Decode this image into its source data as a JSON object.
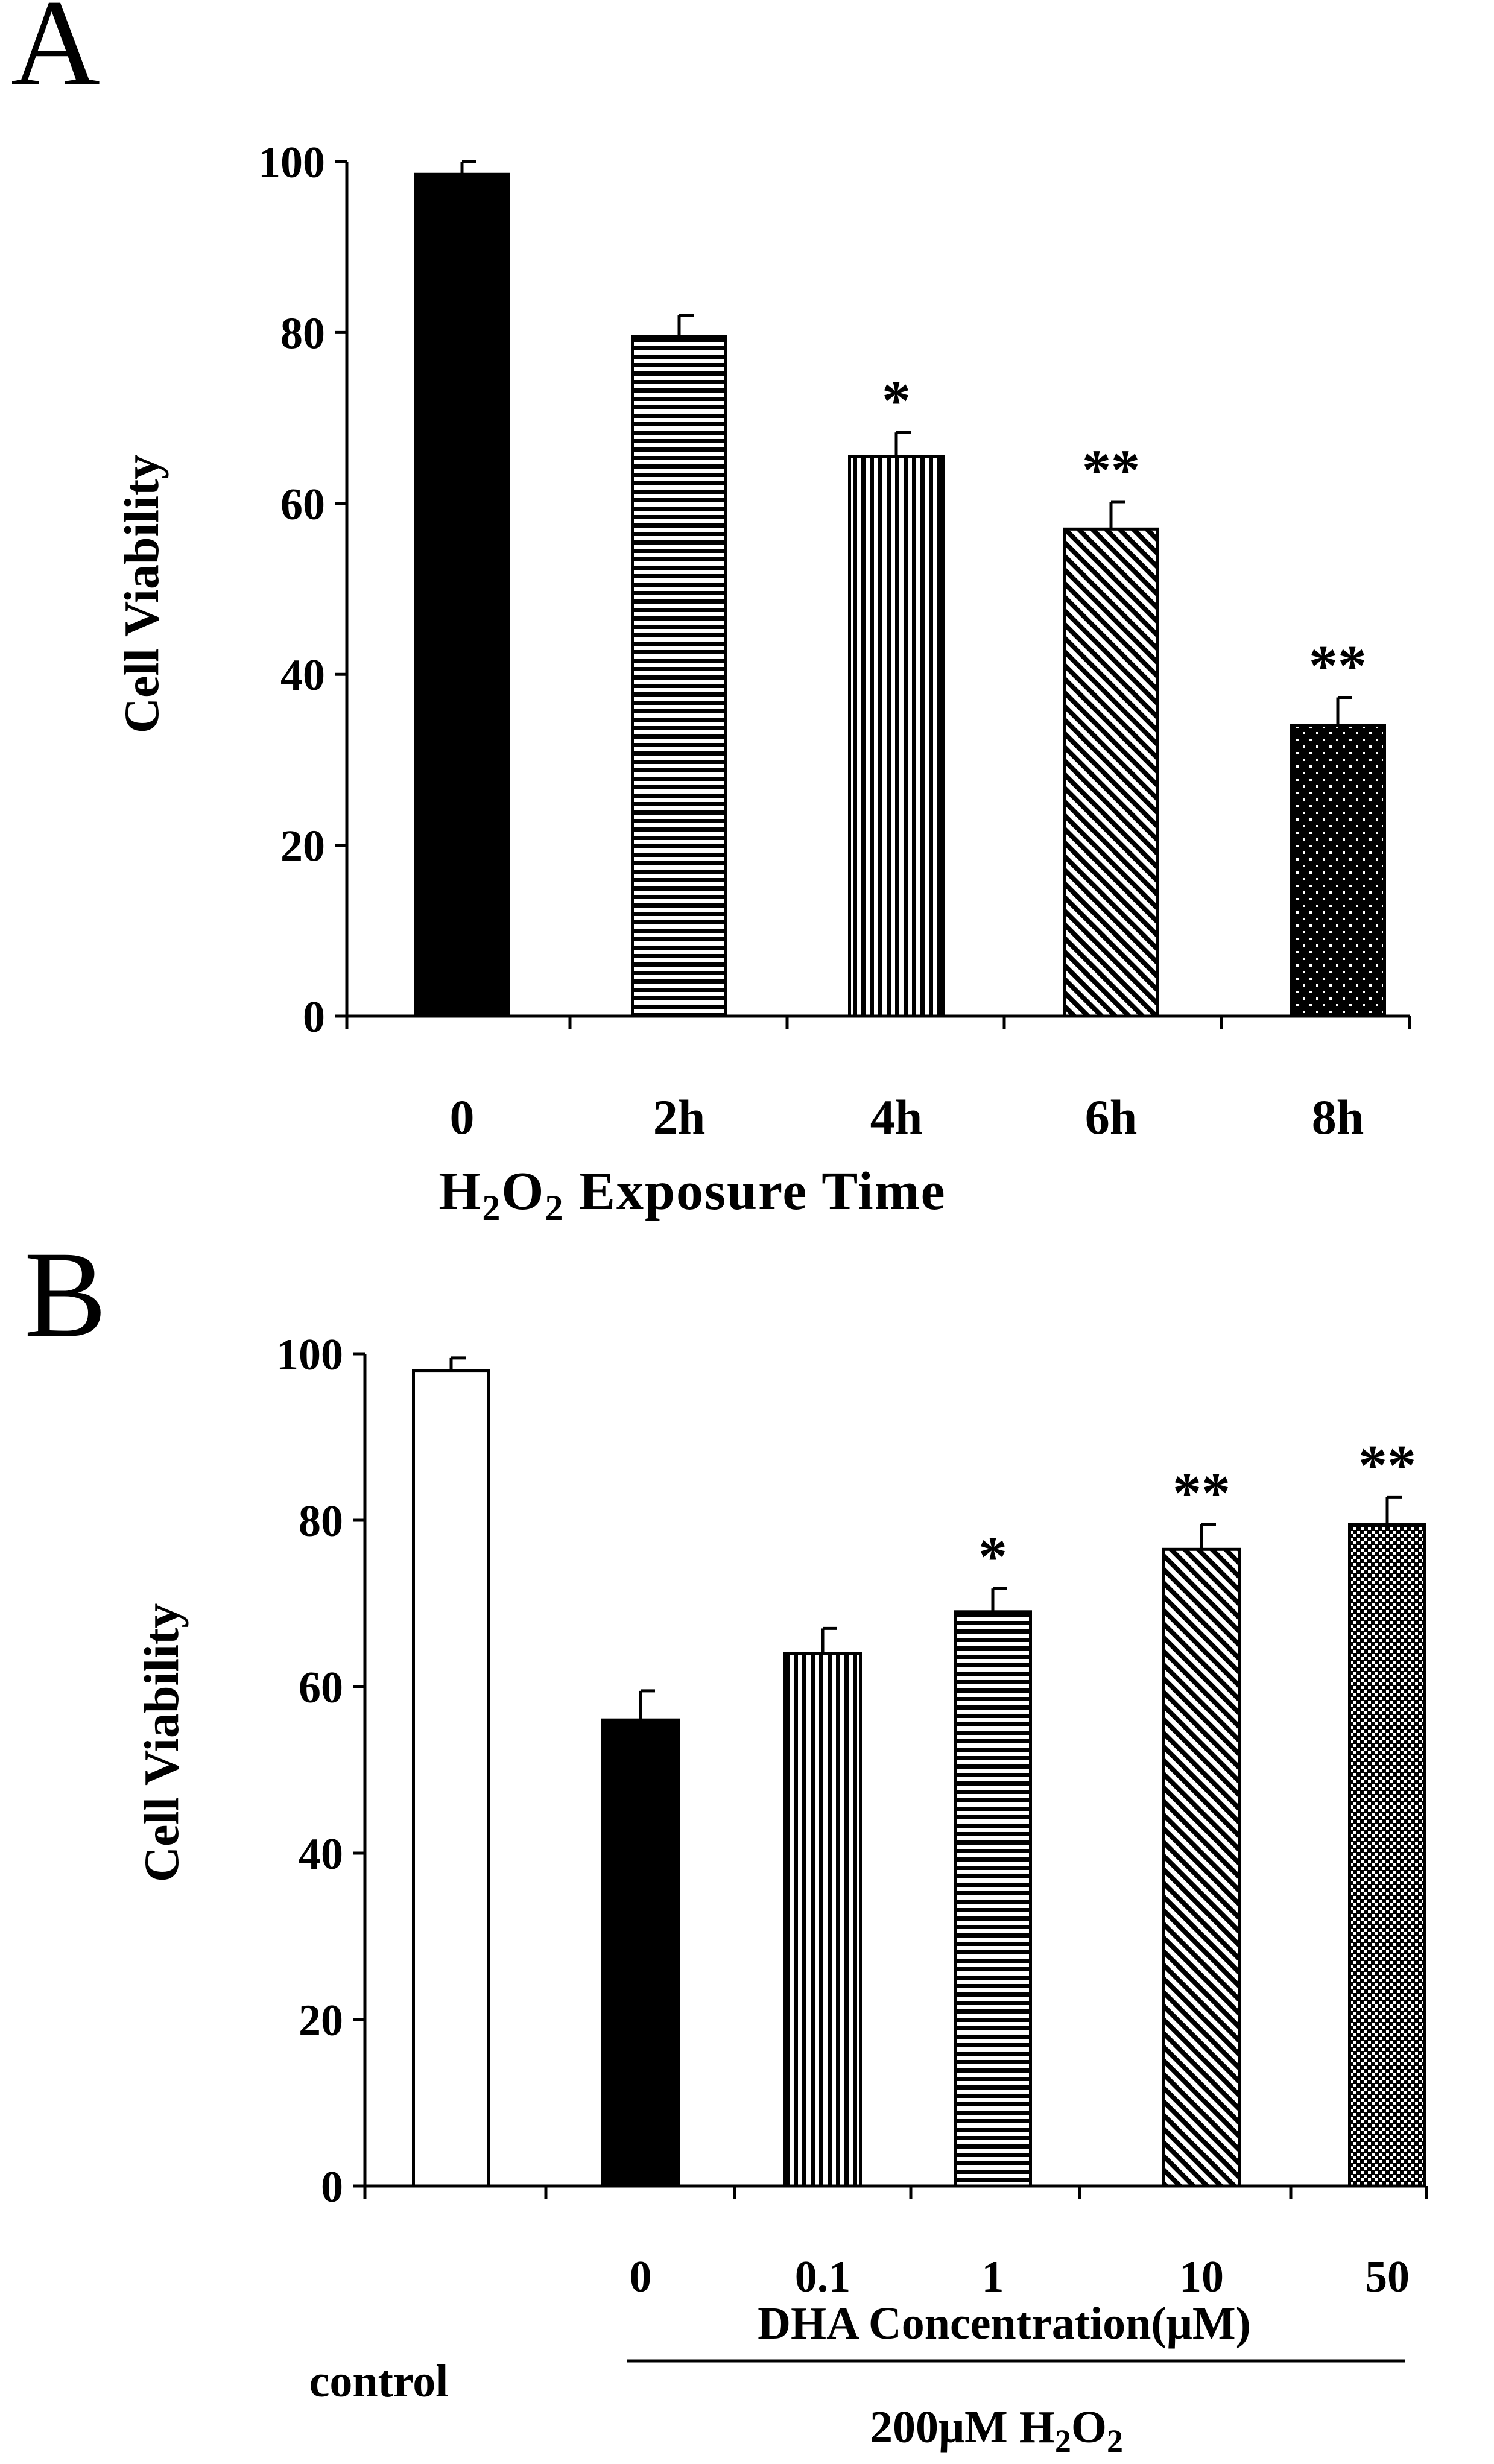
{
  "chart_data": [
    {
      "type": "bar",
      "panel": "A",
      "categories": [
        "0",
        "2h",
        "4h",
        "6h",
        "8h"
      ],
      "values": [
        98.5,
        79.5,
        65.5,
        57,
        34
      ],
      "errors": [
        1.5,
        2.5,
        2.8,
        3.2,
        3.3
      ],
      "significance": [
        "",
        "",
        "*",
        "**",
        "**"
      ],
      "patterns": [
        "solid",
        "horizontal",
        "vertical",
        "diagonal",
        "dots"
      ],
      "ylabel": "Cell Viability",
      "xlabel": "H2O2 Exposure Time",
      "xlabel_parts": {
        "h": "H",
        "sub1": "2",
        "o": "O",
        "sub2": "2",
        "rest": " Exposure Time"
      },
      "ylim": [
        0,
        100
      ],
      "yticks": [
        "0",
        "20",
        "40",
        "60",
        "80",
        "100"
      ]
    },
    {
      "type": "bar",
      "panel": "B",
      "categories": [
        "",
        "0",
        "0.1",
        "1",
        "10",
        "50"
      ],
      "values": [
        98,
        56,
        64,
        69,
        76.5,
        79.5
      ],
      "errors": [
        1.5,
        3.5,
        3,
        2.8,
        3,
        3.3
      ],
      "significance": [
        "",
        "",
        "",
        "*",
        "**",
        "**"
      ],
      "patterns": [
        "white",
        "solid",
        "vertical",
        "horizontal",
        "diagonal",
        "crosshatch"
      ],
      "ylabel": "Cell Viability",
      "group_label": "control",
      "xlabel": "DHA Concentration(μM)",
      "treatment_label": "200μM H2O2",
      "treatment_parts": {
        "main": "200μM H",
        "sub1": "2",
        "o": "O",
        "sub2": "2"
      },
      "ylim": [
        0,
        100
      ],
      "yticks": [
        "0",
        "20",
        "40",
        "60",
        "80",
        "100"
      ]
    }
  ],
  "panel_labels": [
    "A",
    "B"
  ]
}
